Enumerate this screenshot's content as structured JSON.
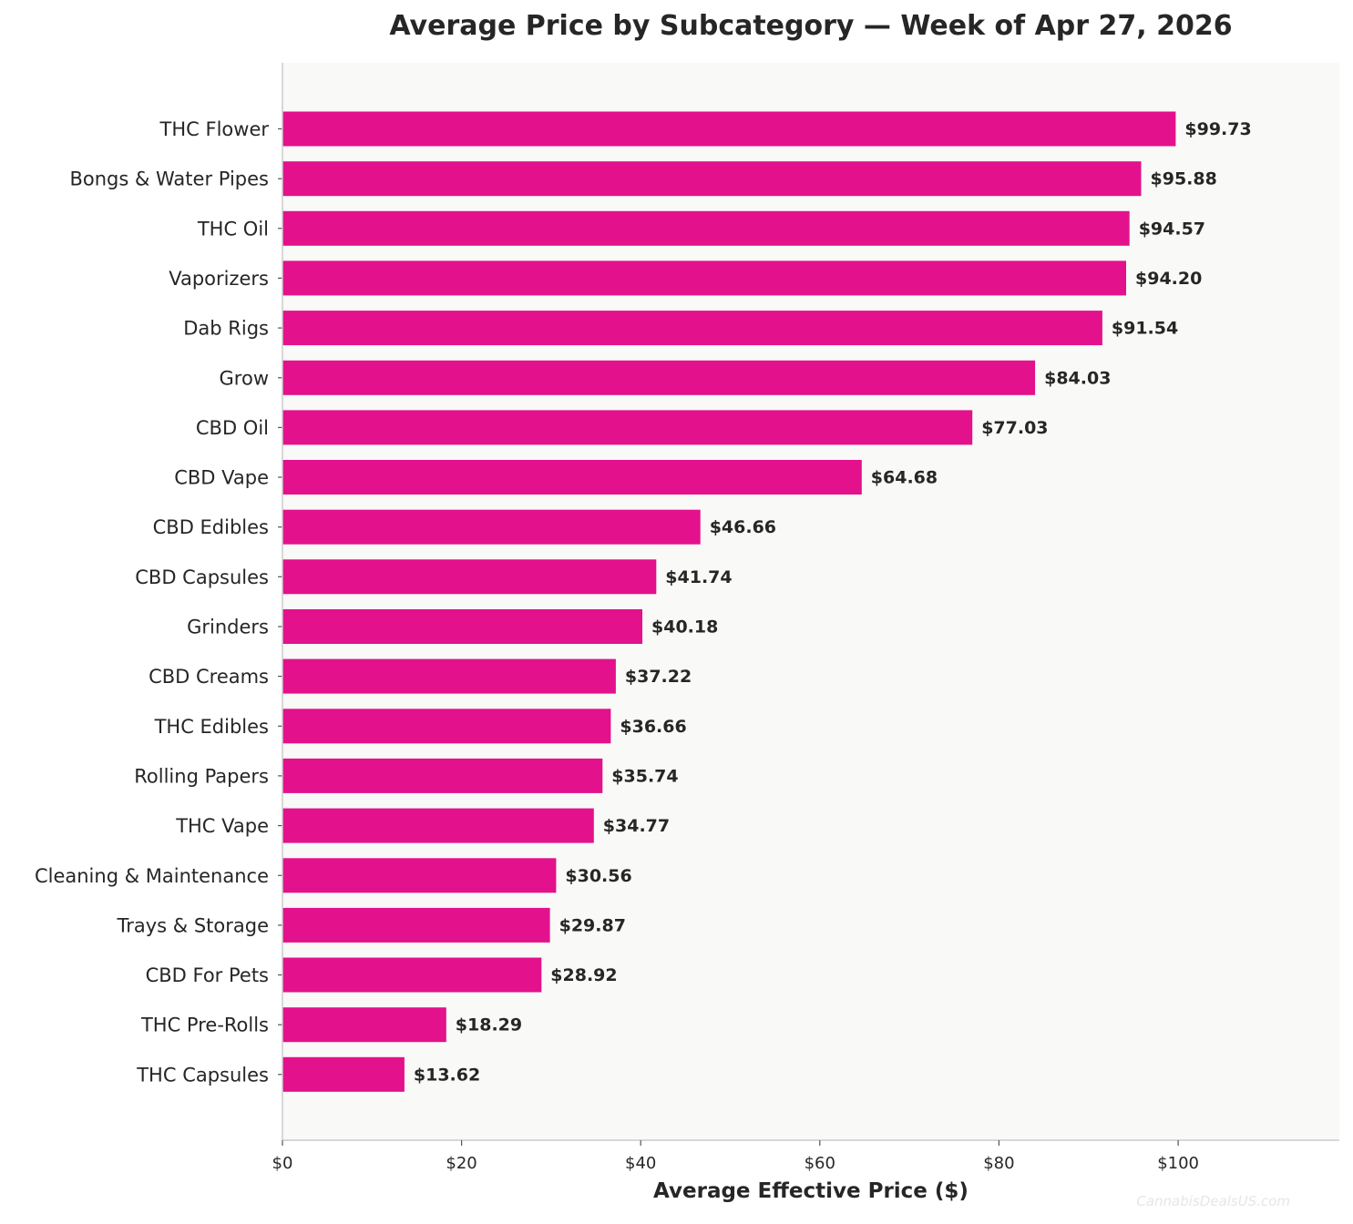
{
  "chart_data": {
    "type": "bar",
    "orientation": "horizontal",
    "title": "Average Price by Subcategory — Week of Apr 27, 2026",
    "xlabel": "Average Effective Price ($)",
    "ylabel": "",
    "xlim": [
      0,
      118
    ],
    "x_ticks": [
      {
        "value": 0,
        "label": "$0"
      },
      {
        "value": 20,
        "label": "$20"
      },
      {
        "value": 40,
        "label": "$40"
      },
      {
        "value": 60,
        "label": "$60"
      },
      {
        "value": 80,
        "label": "$80"
      },
      {
        "value": 100,
        "label": "$100"
      }
    ],
    "grid": false,
    "bar_color": "#e3118c",
    "plot_background": "#f9f9f8",
    "categories": [
      "THC Flower",
      "Bongs & Water Pipes",
      "THC Oil",
      "Vaporizers",
      "Dab Rigs",
      "Grow",
      "CBD Oil",
      "CBD Vape",
      "CBD Edibles",
      "CBD Capsules",
      "Grinders",
      "CBD Creams",
      "THC Edibles",
      "Rolling Papers",
      "THC Vape",
      "Cleaning & Maintenance",
      "Trays & Storage",
      "CBD For Pets",
      "THC Pre-Rolls",
      "THC Capsules"
    ],
    "values": [
      99.73,
      95.88,
      94.57,
      94.2,
      91.54,
      84.03,
      77.03,
      64.68,
      46.66,
      41.74,
      40.18,
      37.22,
      36.66,
      35.74,
      34.77,
      30.56,
      29.87,
      28.92,
      18.29,
      13.62
    ],
    "value_labels": [
      "$99.73",
      "$95.88",
      "$94.57",
      "$94.20",
      "$91.54",
      "$84.03",
      "$77.03",
      "$64.68",
      "$46.66",
      "$41.74",
      "$40.18",
      "$37.22",
      "$36.66",
      "$35.74",
      "$34.77",
      "$30.56",
      "$29.87",
      "$28.92",
      "$18.29",
      "$13.62"
    ],
    "watermark": "CannabisDealsUS.com"
  }
}
